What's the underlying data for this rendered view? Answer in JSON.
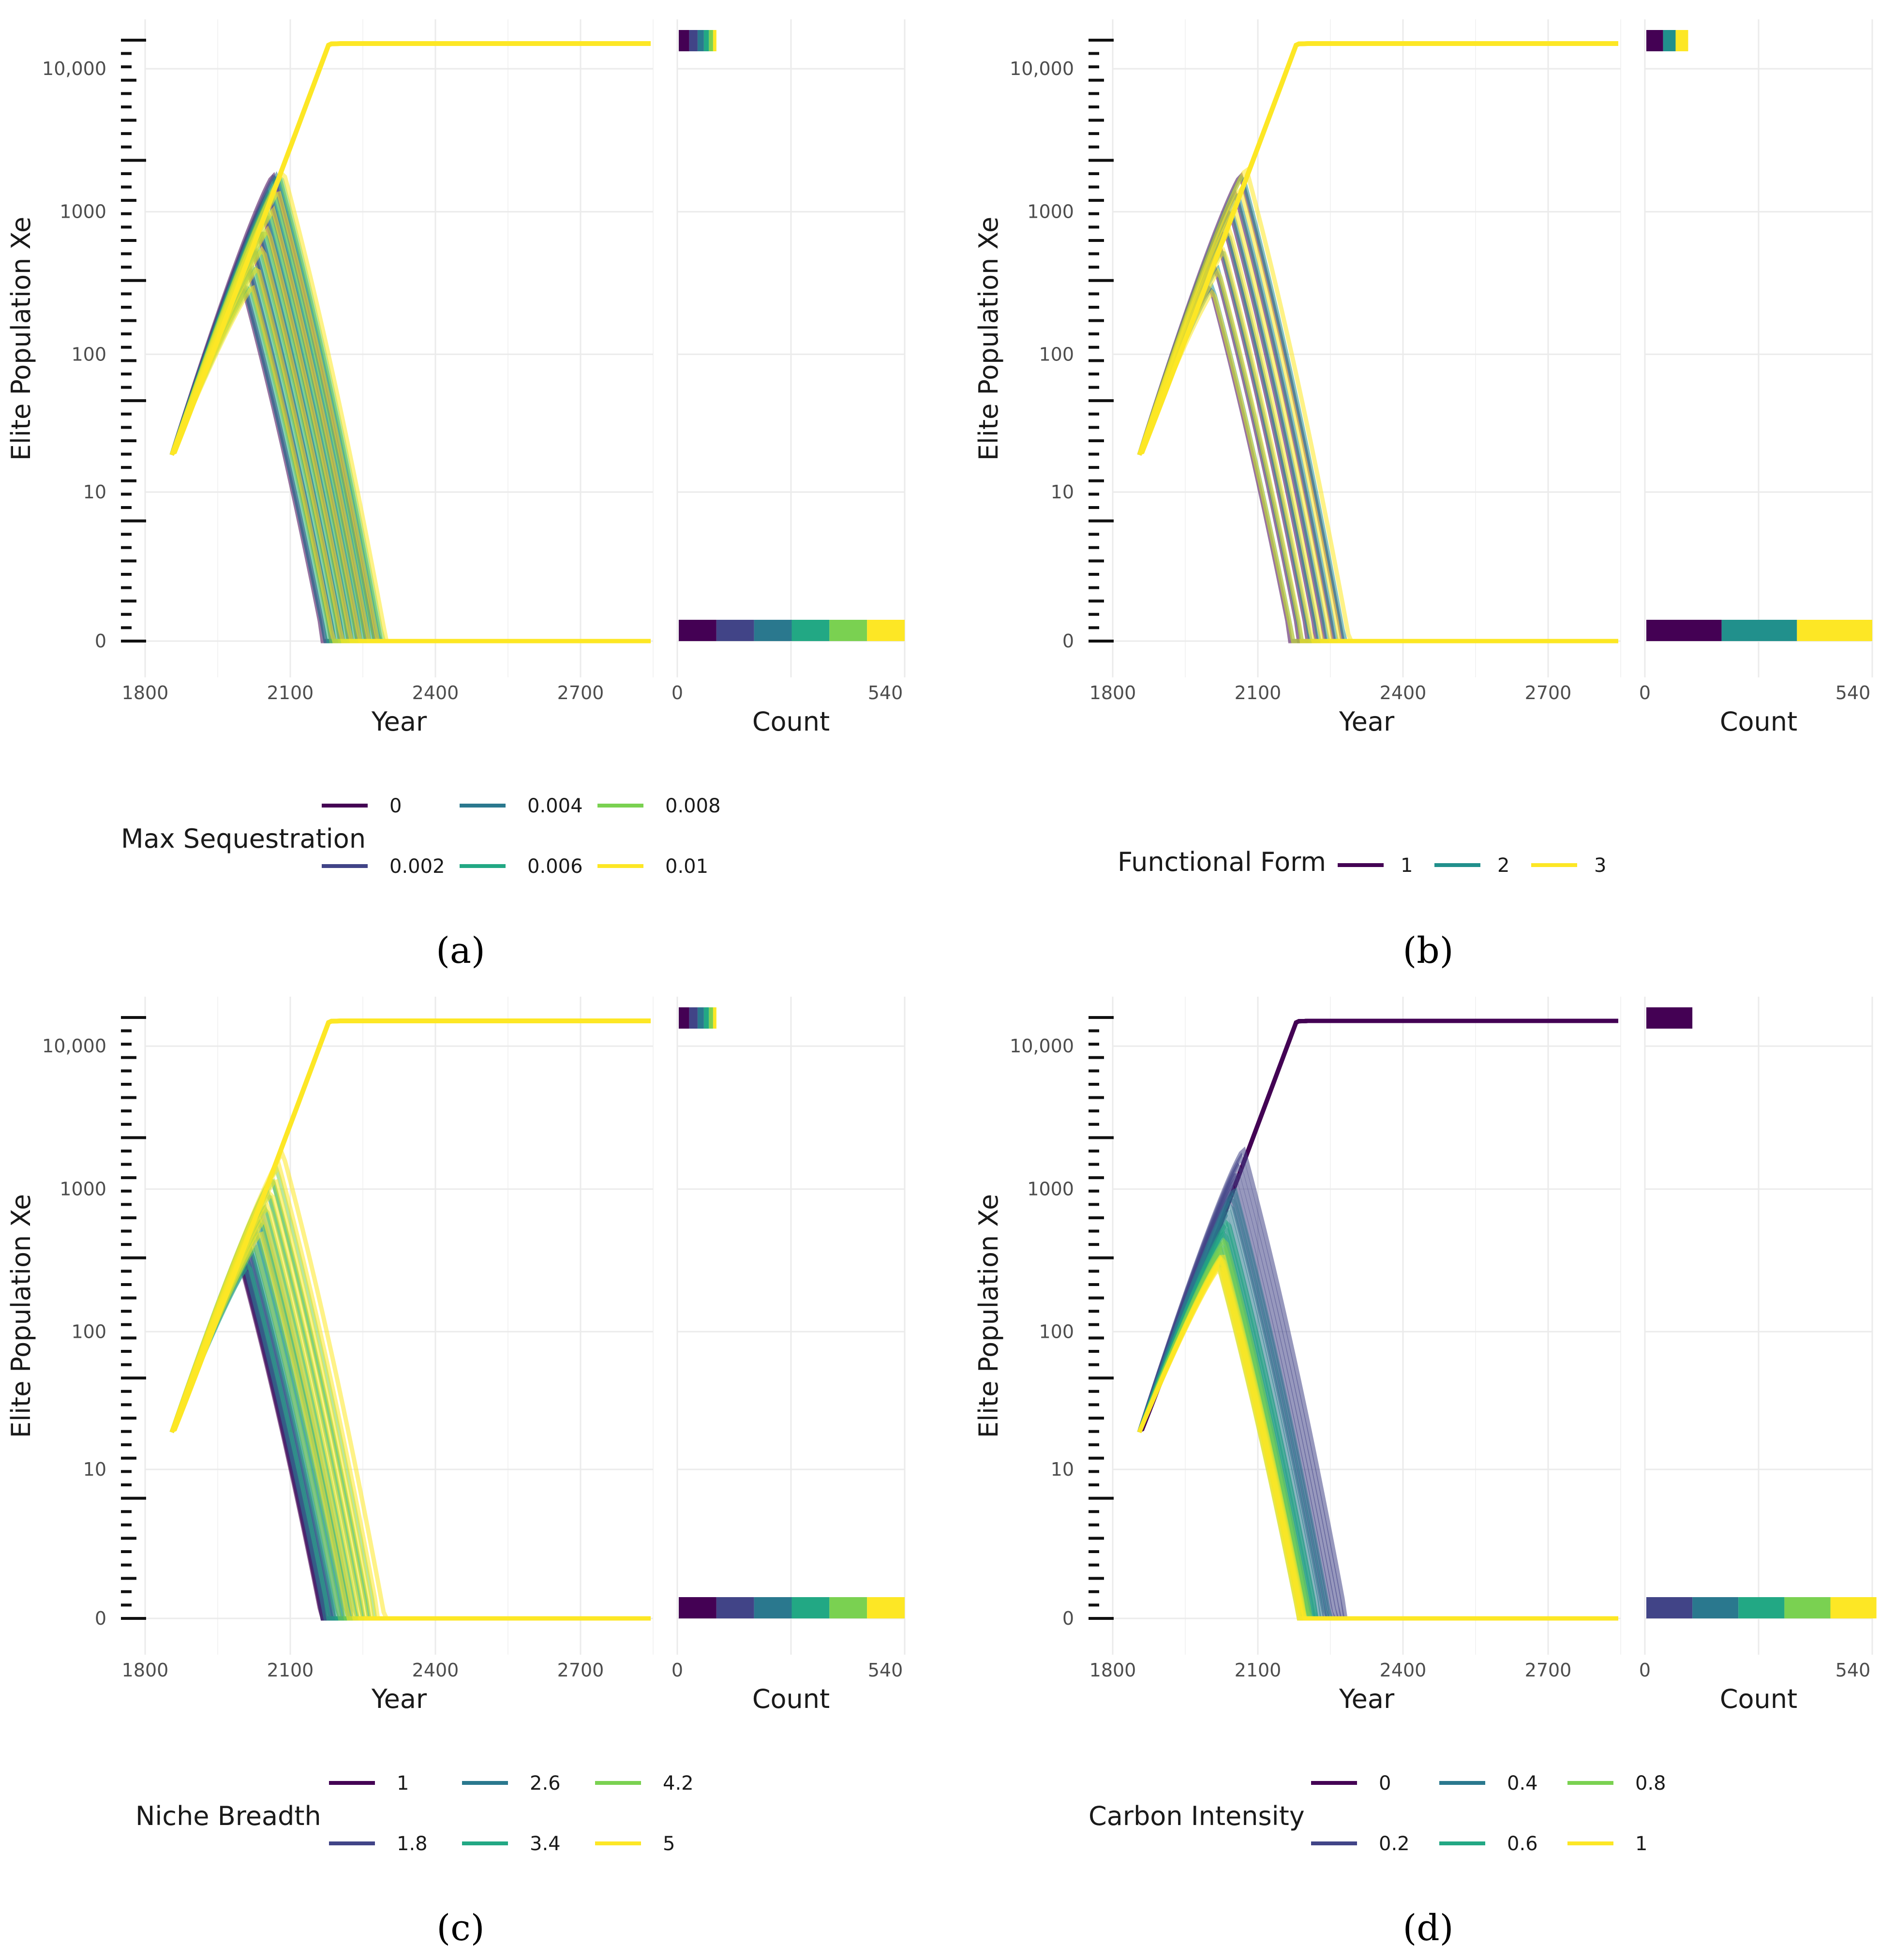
{
  "palettes": {
    "six": [
      "#440154",
      "#414487",
      "#2a788e",
      "#22a884",
      "#7ad151",
      "#fde725"
    ],
    "three": [
      "#440154",
      "#21908c",
      "#fde725"
    ]
  },
  "chart_data": [
    {
      "type": "line",
      "panel_label": "(a)",
      "xlabel": "Year",
      "ylabel": "Elite Population Xe",
      "x_ticks": [
        "1800",
        "2100",
        "2400",
        "2700"
      ],
      "y_scale": "log1p",
      "y_ticks": [
        "0",
        "10",
        "100",
        "1000",
        "10,000"
      ],
      "xlim": [
        1800,
        2850
      ],
      "hist_xlabel": "Count",
      "hist_x_ticks": [
        "0",
        "540"
      ],
      "legend": {
        "title": "Max Sequestration",
        "entries": [
          "0",
          "0.002",
          "0.004",
          "0.006",
          "0.008",
          "0.01"
        ],
        "ncol": 3
      },
      "stable_equilibrium": 15000,
      "histogram": {
        "top_bin": {
          "y": 15000,
          "counts": [
            25,
            20,
            15,
            12,
            10,
            8
          ]
        },
        "bottom_bin": {
          "y": 0,
          "counts": [
            90,
            90,
            90,
            90,
            90,
            90
          ]
        }
      },
      "peaks_per_color": [
        [
          300,
          1800
        ],
        [
          300,
          1800
        ],
        [
          280,
          1800
        ],
        [
          300,
          1800
        ],
        [
          300,
          1800
        ],
        [
          300,
          1900
        ]
      ]
    },
    {
      "type": "line",
      "panel_label": "(b)",
      "xlabel": "Year",
      "ylabel": "Elite Population Xe",
      "x_ticks": [
        "1800",
        "2100",
        "2400",
        "2700"
      ],
      "y_scale": "log1p",
      "y_ticks": [
        "0",
        "10",
        "100",
        "1000",
        "10,000"
      ],
      "xlim": [
        1800,
        2850
      ],
      "hist_xlabel": "Count",
      "hist_x_ticks": [
        "0",
        "540"
      ],
      "legend": {
        "title": "Functional Form",
        "entries": [
          "1",
          "2",
          "3"
        ],
        "ncol": 3
      },
      "stable_equilibrium": 15000,
      "histogram": {
        "top_bin": {
          "y": 15000,
          "counts": [
            40,
            30,
            30
          ]
        },
        "bottom_bin": {
          "y": 0,
          "counts": [
            180,
            180,
            180
          ]
        }
      },
      "peaks_per_color": [
        [
          300,
          1800
        ],
        [
          300,
          1800
        ],
        [
          280,
          2000
        ]
      ]
    },
    {
      "type": "line",
      "panel_label": "(c)",
      "xlabel": "Year",
      "ylabel": "Elite Population Xe",
      "x_ticks": [
        "1800",
        "2100",
        "2400",
        "2700"
      ],
      "y_scale": "log1p",
      "y_ticks": [
        "0",
        "10",
        "100",
        "1000",
        "10,000"
      ],
      "xlim": [
        1800,
        2850
      ],
      "hist_xlabel": "Count",
      "hist_x_ticks": [
        "0",
        "540"
      ],
      "legend": {
        "title": "Niche Breadth",
        "entries": [
          "1",
          "1.8",
          "2.6",
          "3.4",
          "4.2",
          "5"
        ],
        "ncol": 3
      },
      "stable_equilibrium": 15000,
      "histogram": {
        "top_bin": {
          "y": 15000,
          "counts": [
            25,
            20,
            15,
            12,
            10,
            8
          ]
        },
        "bottom_bin": {
          "y": 0,
          "counts": [
            90,
            90,
            90,
            90,
            90,
            90
          ]
        }
      },
      "peaks_per_color": [
        [
          280,
          320
        ],
        [
          280,
          400
        ],
        [
          280,
          700
        ],
        [
          300,
          1200
        ],
        [
          400,
          1400
        ],
        [
          500,
          1800
        ]
      ]
    },
    {
      "type": "line",
      "panel_label": "(d)",
      "xlabel": "Year",
      "ylabel": "Elite Population Xe",
      "x_ticks": [
        "1800",
        "2100",
        "2400",
        "2700"
      ],
      "y_scale": "log1p",
      "y_ticks": [
        "0",
        "10",
        "100",
        "1000",
        "10,000"
      ],
      "xlim": [
        1800,
        2850
      ],
      "hist_xlabel": "Count",
      "hist_x_ticks": [
        "0",
        "540"
      ],
      "legend": {
        "title": "Carbon Intensity",
        "entries": [
          "0",
          "0.2",
          "0.4",
          "0.6",
          "0.8",
          "1"
        ],
        "ncol": 3
      },
      "stable_equilibrium": 15000,
      "histogram": {
        "top_bin": {
          "y": 15000,
          "counts": [
            110,
            0,
            0,
            0,
            0,
            0
          ]
        },
        "bottom_bin": {
          "y": 0,
          "counts": [
            0,
            110,
            110,
            110,
            110,
            110
          ]
        }
      },
      "peaks_per_color": [
        [
          15000,
          15000
        ],
        [
          900,
          1900
        ],
        [
          500,
          1000
        ],
        [
          350,
          600
        ],
        [
          300,
          450
        ],
        [
          280,
          350
        ]
      ]
    }
  ]
}
